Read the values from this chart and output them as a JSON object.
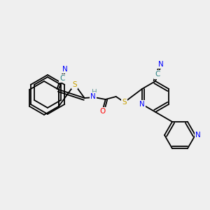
{
  "bg_color": "#efefef",
  "bond_color": "#000000",
  "atom_colors": {
    "N": "#0000ff",
    "S": "#c8a000",
    "O": "#ff0000",
    "C": "#000000",
    "H": "#6fa0a0"
  },
  "font_size": 7.5,
  "line_width": 1.3
}
